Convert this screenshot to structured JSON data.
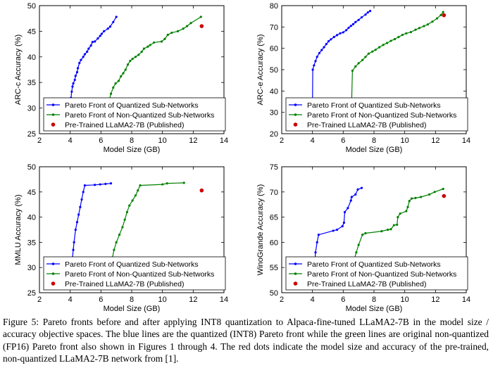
{
  "chart_data": [
    {
      "type": "line",
      "xlabel": "Model Size (GB)",
      "ylabel": "ARC-c Accuracy (%)",
      "xlim": [
        2,
        14
      ],
      "ylim": [
        25,
        50
      ],
      "xticks": [
        2,
        4,
        6,
        8,
        10,
        12,
        14
      ],
      "yticks": [
        25,
        30,
        35,
        40,
        45,
        50
      ],
      "xtick_labels": [
        "2",
        "4",
        "6",
        "8",
        "10",
        "12",
        "14"
      ],
      "ytick_labels": [
        "25",
        "30",
        "35",
        "40",
        "45",
        "50"
      ],
      "legend": [
        "Pareto Front of Quantized Sub-Networks",
        "Pareto Front of Non-Quantized Sub-Networks",
        "Pre-Trained LLaMA2-7B (Published)"
      ],
      "series": [
        {
          "name": "Pareto Front of Quantized Sub-Networks",
          "color": "#0000ff",
          "points": [
            [
              4.05,
              32
            ],
            [
              4.1,
              33.2
            ],
            [
              4.15,
              34.2
            ],
            [
              4.2,
              34.8
            ],
            [
              4.3,
              35.5
            ],
            [
              4.35,
              36.3
            ],
            [
              4.45,
              37
            ],
            [
              4.5,
              37.8
            ],
            [
              4.6,
              38.8
            ],
            [
              4.7,
              39.4
            ],
            [
              4.85,
              40
            ],
            [
              4.95,
              40.5
            ],
            [
              5.1,
              41
            ],
            [
              5.2,
              41.6
            ],
            [
              5.35,
              42.2
            ],
            [
              5.45,
              42.9
            ],
            [
              5.6,
              43
            ],
            [
              5.8,
              43.6
            ],
            [
              5.95,
              44.1
            ],
            [
              6.05,
              44.5
            ],
            [
              6.2,
              45
            ],
            [
              6.45,
              45.5
            ],
            [
              6.6,
              45.9
            ],
            [
              6.8,
              46.8
            ],
            [
              7.0,
              47.8
            ]
          ]
        },
        {
          "name": "Pareto Front of Non-Quantized Sub-Networks",
          "color": "#008000",
          "points": [
            [
              6.5,
              31
            ],
            [
              6.65,
              32.8
            ],
            [
              6.8,
              34
            ],
            [
              6.95,
              34.8
            ],
            [
              7.15,
              35.3
            ],
            [
              7.3,
              36.2
            ],
            [
              7.45,
              36.8
            ],
            [
              7.6,
              37.5
            ],
            [
              7.75,
              38.5
            ],
            [
              7.9,
              39.2
            ],
            [
              8.05,
              39.6
            ],
            [
              8.25,
              40
            ],
            [
              8.45,
              40.4
            ],
            [
              8.65,
              41
            ],
            [
              8.8,
              41.6
            ],
            [
              9.05,
              42
            ],
            [
              9.2,
              42.3
            ],
            [
              9.45,
              42.8
            ],
            [
              9.95,
              43
            ],
            [
              10.15,
              43.5
            ],
            [
              10.35,
              44.3
            ],
            [
              10.6,
              44.7
            ],
            [
              11.0,
              45.0
            ],
            [
              11.35,
              45.5
            ],
            [
              11.6,
              46
            ],
            [
              11.85,
              46.6
            ],
            [
              12.5,
              47.8
            ]
          ]
        }
      ],
      "published": {
        "name": "Pre-Trained LLaMA2-7B (Published)",
        "color": "#cc0000",
        "x": 12.55,
        "y": 46
      }
    },
    {
      "type": "line",
      "xlabel": "Model Size (GB)",
      "ylabel": "ARC-e Accuracy (%)",
      "xlim": [
        2,
        14
      ],
      "ylim": [
        20,
        80
      ],
      "xticks": [
        2,
        4,
        6,
        8,
        10,
        12,
        14
      ],
      "yticks": [
        20,
        30,
        40,
        50,
        60,
        70,
        80
      ],
      "xtick_labels": [
        "2",
        "4",
        "6",
        "8",
        "10",
        "12",
        "14"
      ],
      "ytick_labels": [
        "20",
        "30",
        "40",
        "50",
        "60",
        "70",
        "80"
      ],
      "legend": [
        "Pareto Front of Quantized Sub-Networks",
        "Pareto Front of Non-Quantized Sub-Networks",
        "Pre-Trained LLaMA2-7B (Published)"
      ],
      "series": [
        {
          "name": "Pareto Front of Quantized Sub-Networks",
          "color": "#0000ff",
          "points": [
            [
              4.0,
              35
            ],
            [
              4.02,
              50
            ],
            [
              4.1,
              52
            ],
            [
              4.2,
              54
            ],
            [
              4.3,
              56
            ],
            [
              4.45,
              57.8
            ],
            [
              4.6,
              59.2
            ],
            [
              4.75,
              60.5
            ],
            [
              4.9,
              62
            ],
            [
              5.05,
              63.3
            ],
            [
              5.2,
              64.2
            ],
            [
              5.4,
              65.3
            ],
            [
              5.6,
              66.2
            ],
            [
              5.8,
              67
            ],
            [
              6.0,
              67.5
            ],
            [
              6.2,
              68.5
            ],
            [
              6.35,
              69.6
            ],
            [
              6.5,
              70.5
            ],
            [
              6.65,
              71.3
            ],
            [
              6.8,
              72.3
            ],
            [
              7.0,
              73.3
            ],
            [
              7.2,
              74.5
            ],
            [
              7.45,
              75.8
            ],
            [
              7.6,
              76.8
            ],
            [
              7.75,
              77.5
            ]
          ]
        },
        {
          "name": "Pareto Front of Non-Quantized Sub-Networks",
          "color": "#008000",
          "points": [
            [
              6.55,
              35
            ],
            [
              6.6,
              49.5
            ],
            [
              6.8,
              51.5
            ],
            [
              7.0,
              53
            ],
            [
              7.25,
              54.5
            ],
            [
              7.45,
              56
            ],
            [
              7.65,
              57.5
            ],
            [
              7.9,
              58.5
            ],
            [
              8.1,
              59.3
            ],
            [
              8.35,
              60.5
            ],
            [
              8.6,
              61.6
            ],
            [
              8.85,
              62.5
            ],
            [
              9.1,
              63.5
            ],
            [
              9.35,
              64.3
            ],
            [
              9.6,
              65.3
            ],
            [
              9.85,
              66.3
            ],
            [
              10.1,
              67
            ],
            [
              10.4,
              67.6
            ],
            [
              10.7,
              68.7
            ],
            [
              10.95,
              69.5
            ],
            [
              11.25,
              70.4
            ],
            [
              11.5,
              71.2
            ],
            [
              11.8,
              72.5
            ],
            [
              12.1,
              74
            ],
            [
              12.35,
              75.6
            ],
            [
              12.5,
              77
            ]
          ]
        }
      ],
      "published": {
        "name": "Pre-Trained LLaMA2-7B (Published)",
        "color": "#cc0000",
        "x": 12.55,
        "y": 75.5
      }
    },
    {
      "type": "line",
      "xlabel": "Model Size (GB)",
      "ylabel": "MMLU Accuracy (%)",
      "xlim": [
        2,
        14
      ],
      "ylim": [
        25,
        50
      ],
      "xticks": [
        2,
        4,
        6,
        8,
        10,
        12,
        14
      ],
      "yticks": [
        25,
        30,
        35,
        40,
        45,
        50
      ],
      "xtick_labels": [
        "2",
        "4",
        "6",
        "8",
        "10",
        "12",
        "14"
      ],
      "ytick_labels": [
        "25",
        "30",
        "35",
        "40",
        "45",
        "50"
      ],
      "legend": [
        "Pareto Front of Quantized Sub-Networks",
        "Pareto Front of Non-Quantized Sub-Networks",
        "Pre-Trained LLaMA2-7B (Published)"
      ],
      "series": [
        {
          "name": "Pareto Front of Quantized Sub-Networks",
          "color": "#0000ff",
          "points": [
            [
              4.15,
              32
            ],
            [
              4.2,
              33.5
            ],
            [
              4.25,
              35
            ],
            [
              4.35,
              37.5
            ],
            [
              4.45,
              39
            ],
            [
              4.55,
              40.5
            ],
            [
              4.65,
              42
            ],
            [
              4.75,
              43.5
            ],
            [
              4.85,
              45
            ],
            [
              4.95,
              46.3
            ],
            [
              5.6,
              46.4
            ],
            [
              5.95,
              46.5
            ],
            [
              6.3,
              46.6
            ],
            [
              6.65,
              46.7
            ]
          ]
        },
        {
          "name": "Pareto Front of Non-Quantized Sub-Networks",
          "color": "#008000",
          "points": [
            [
              6.75,
              32
            ],
            [
              6.85,
              33.5
            ],
            [
              7.0,
              35
            ],
            [
              7.2,
              36.5
            ],
            [
              7.4,
              38
            ],
            [
              7.55,
              39.5
            ],
            [
              7.7,
              41
            ],
            [
              7.85,
              42.3
            ],
            [
              8.05,
              43.3
            ],
            [
              8.25,
              44.3
            ],
            [
              8.4,
              45.3
            ],
            [
              8.55,
              46.3
            ],
            [
              10.0,
              46.5
            ],
            [
              10.3,
              46.7
            ],
            [
              11.4,
              46.8
            ]
          ]
        }
      ],
      "published": {
        "name": "Pre-Trained LLaMA2-7B (Published)",
        "color": "#cc0000",
        "x": 12.55,
        "y": 45.3
      }
    },
    {
      "type": "line",
      "xlabel": "Model Size (GB)",
      "ylabel": "WinoGrande Accuracy (%)",
      "xlim": [
        2,
        14
      ],
      "ylim": [
        50,
        75
      ],
      "xticks": [
        2,
        4,
        6,
        8,
        10,
        12,
        14
      ],
      "yticks": [
        50,
        55,
        60,
        65,
        70,
        75
      ],
      "xtick_labels": [
        "2",
        "4",
        "6",
        "8",
        "10",
        "12",
        "14"
      ],
      "ytick_labels": [
        "50",
        "55",
        "60",
        "65",
        "70",
        "75"
      ],
      "legend": [
        "Pareto Front of Quantized Sub-Networks",
        "Pareto Front of Non-Quantized Sub-Networks",
        "Pre-Trained LLaMA2-7B (Published)"
      ],
      "series": [
        {
          "name": "Pareto Front of Quantized Sub-Networks",
          "color": "#0000ff",
          "points": [
            [
              4.15,
              56
            ],
            [
              4.2,
              58
            ],
            [
              4.3,
              60
            ],
            [
              4.4,
              61.5
            ],
            [
              5.35,
              62.3
            ],
            [
              5.6,
              62.5
            ],
            [
              5.95,
              63.2
            ],
            [
              6.05,
              63.9
            ],
            [
              6.1,
              66
            ],
            [
              6.3,
              66.8
            ],
            [
              6.5,
              68.3
            ],
            [
              6.55,
              69
            ],
            [
              6.8,
              69.5
            ],
            [
              6.95,
              70.5
            ],
            [
              7.2,
              70.8
            ]
          ]
        },
        {
          "name": "Pareto Front of Non-Quantized Sub-Networks",
          "color": "#008000",
          "points": [
            [
              6.6,
              56
            ],
            [
              6.7,
              56.5
            ],
            [
              6.85,
              58
            ],
            [
              7.0,
              59.5
            ],
            [
              7.25,
              61.5
            ],
            [
              7.45,
              61.8
            ],
            [
              8.5,
              62.2
            ],
            [
              8.9,
              62.5
            ],
            [
              9.1,
              62.6
            ],
            [
              9.3,
              63.4
            ],
            [
              9.5,
              63.5
            ],
            [
              9.55,
              65
            ],
            [
              9.7,
              65.7
            ],
            [
              10.1,
              66.2
            ],
            [
              10.2,
              67
            ],
            [
              10.3,
              68.2
            ],
            [
              10.45,
              68.7
            ],
            [
              10.7,
              68.8
            ],
            [
              11.05,
              69
            ],
            [
              11.6,
              69.5
            ],
            [
              11.95,
              70
            ],
            [
              12.5,
              70.6
            ]
          ]
        }
      ],
      "published": {
        "name": "Pre-Trained LLaMA2-7B (Published)",
        "color": "#cc0000",
        "x": 12.55,
        "y": 69.2
      }
    }
  ],
  "caption": {
    "lines": [
      "Figure 5: Pareto fronts before and after applying INT8 quantization to Alpaca-fine-tuned LLaMA2-7B in the model",
      "size / accuracy objective spaces. The blue lines are the quantized (INT8) Pareto front while the green lines are original",
      "non-quantized (FP16) Pareto front also shown in Figures 1 through 4. The red dots indicate the model size and",
      "accuracy of the pre-trained, non-quantized LLaMA2-7B network from [1]."
    ]
  }
}
